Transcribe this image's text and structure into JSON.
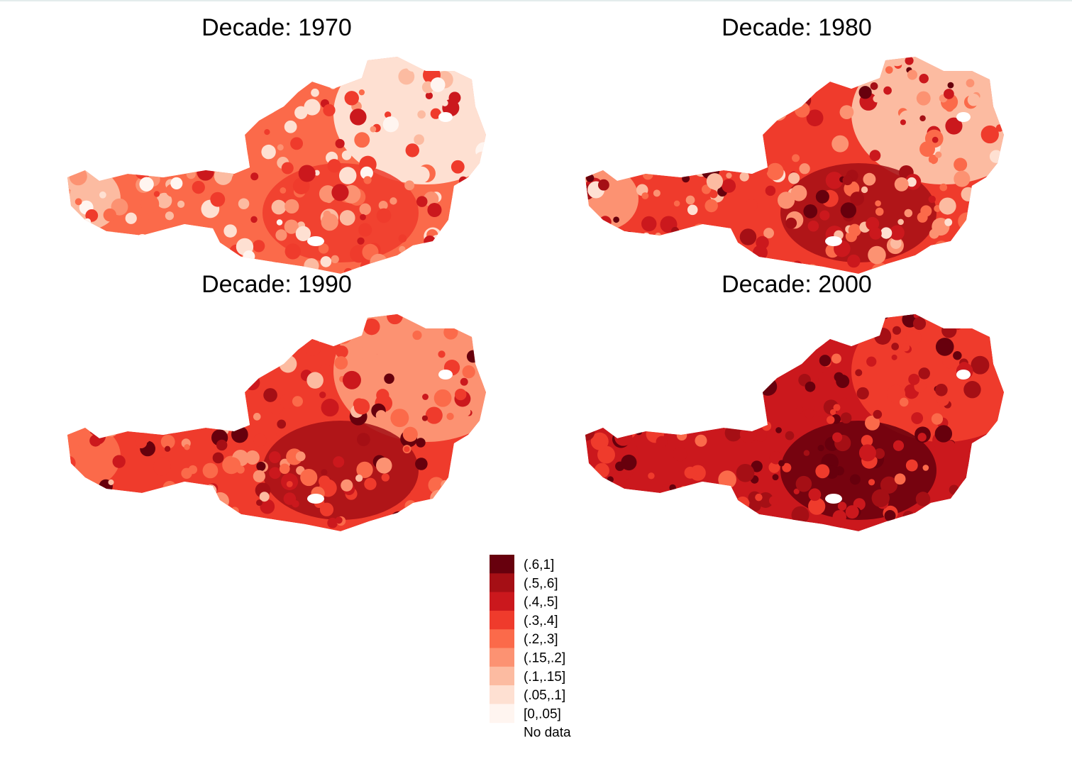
{
  "panels": [
    {
      "title": "Decade: 1970"
    },
    {
      "title": "Decade: 1980"
    },
    {
      "title": "Decade: 1990"
    },
    {
      "title": "Decade: 2000"
    }
  ],
  "legend": {
    "items": [
      {
        "label": "(.6,1]",
        "color": "#67000d"
      },
      {
        "label": "(.5,.6]",
        "color": "#a50f15"
      },
      {
        "label": "(.4,.5]",
        "color": "#cb181d"
      },
      {
        "label": "(.3,.4]",
        "color": "#ef3b2c"
      },
      {
        "label": "(.2,.3]",
        "color": "#fb6a4a"
      },
      {
        "label": "(.15,.2]",
        "color": "#fc9272"
      },
      {
        "label": "(.1,.15]",
        "color": "#fcbba1"
      },
      {
        "label": "(.05,.1]",
        "color": "#fee0d2"
      },
      {
        "label": "[0,.05]",
        "color": "#fff5f0"
      }
    ],
    "no_data": "No data"
  }
}
